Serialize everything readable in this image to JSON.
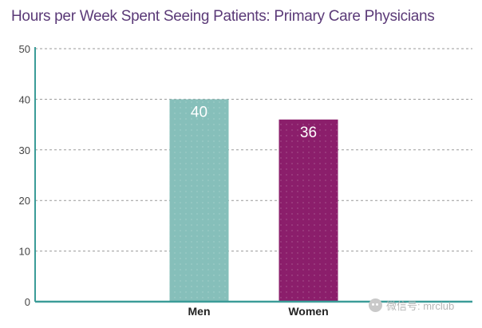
{
  "chart_data": {
    "type": "bar",
    "title": "Hours per Week Spent Seeing Patients: Primary Care Physicians",
    "xlabel": "",
    "ylabel": "",
    "categories": [
      "Men",
      "Women"
    ],
    "values": [
      40,
      36
    ],
    "value_labels": [
      "40",
      "36"
    ],
    "ylim": [
      0,
      50
    ],
    "yticks": [
      0,
      10,
      20,
      30,
      40,
      50
    ],
    "grid": "horizontal dashed",
    "legend": "none",
    "bar_colors": [
      "#86bfba",
      "#8b1e6b"
    ],
    "colors": {
      "title": "#5b3a78",
      "axis": "#3b9c98",
      "grid": "#9a9a9a",
      "tick_label": "#444444",
      "category_label": "#222222",
      "value_label": "#ffffff"
    }
  },
  "watermark": {
    "icon": "wechat-icon",
    "text": "微信号: mrclub"
  }
}
